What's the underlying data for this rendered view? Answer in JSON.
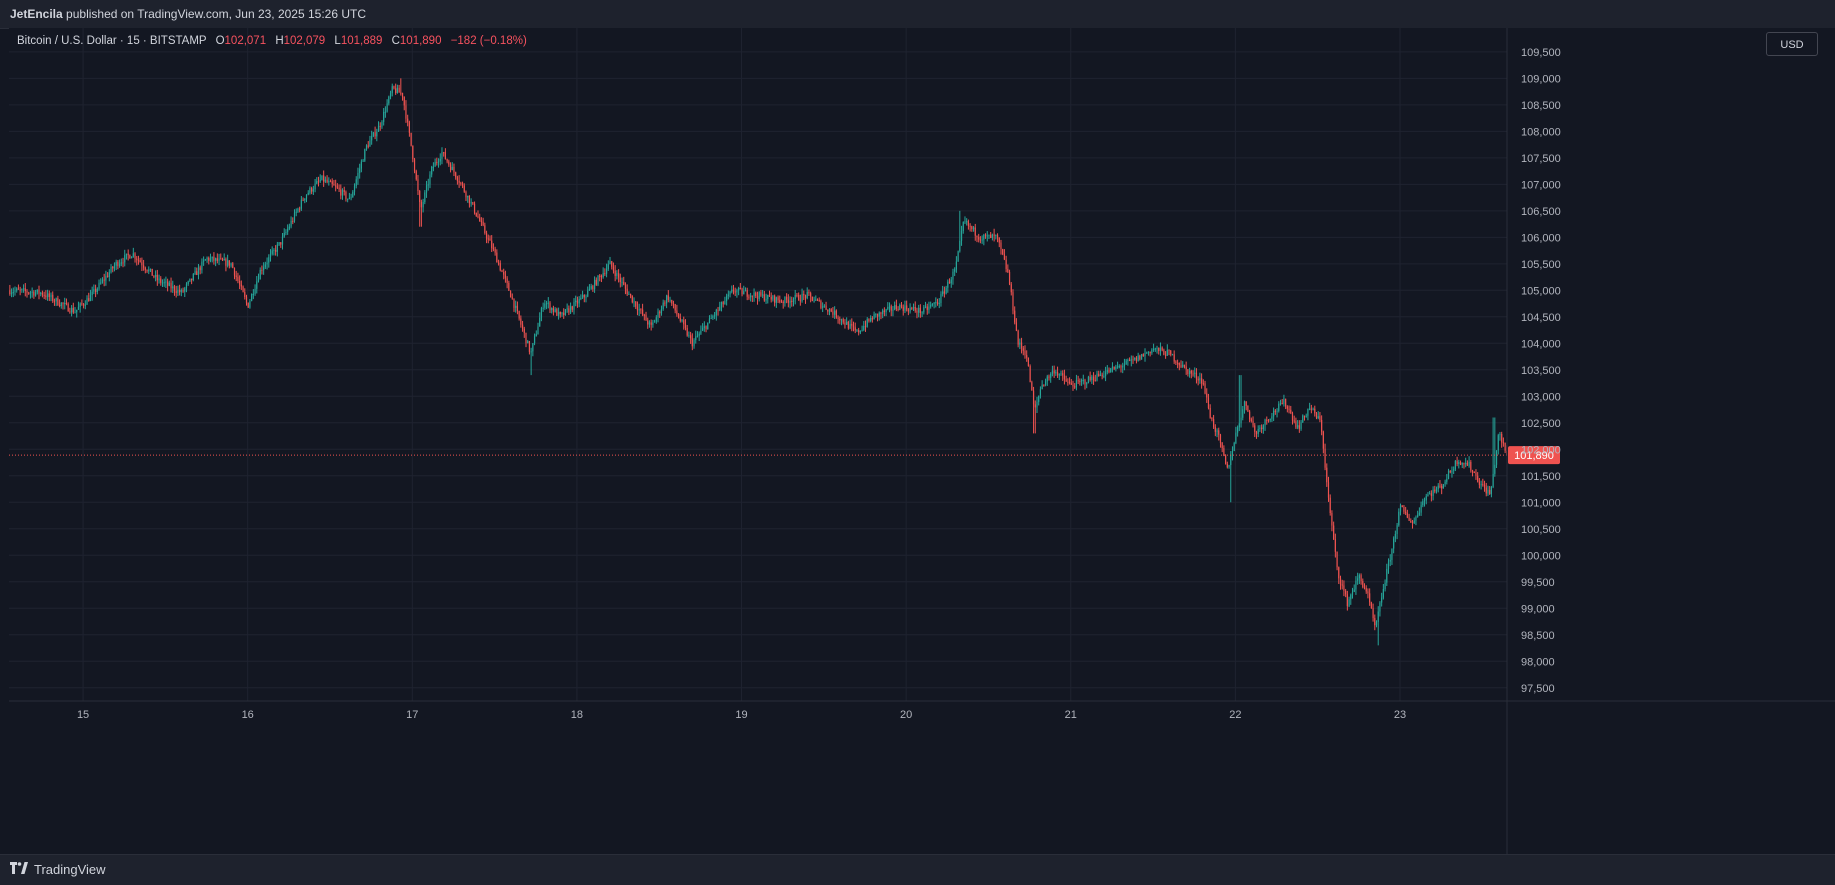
{
  "header": {
    "author": "JetEncila",
    "published_text": "published on TradingView.com, Jun 23, 2025 15:26 UTC"
  },
  "legend": {
    "symbol": "Bitcoin / U.S. Dollar · 15 · BITSTAMP",
    "o_label": "O",
    "o_value": "102,071",
    "h_label": "H",
    "h_value": "102,079",
    "l_label": "L",
    "l_value": "101,889",
    "c_label": "C",
    "c_value": "101,890",
    "change": "−182 (−0.18%)"
  },
  "currency_button": "USD",
  "footer": {
    "brand": "TradingView",
    "logo_icon": "tradingview-logo-icon"
  },
  "colors": {
    "up": "#26a69a",
    "down": "#ef5350",
    "price_line": "#ef5350",
    "background": "#131722",
    "grid": "#1f2330"
  },
  "chart_data": {
    "type": "candlestick",
    "title": "Bitcoin / U.S. Dollar · 15 · BITSTAMP",
    "x_ticks": [
      "15",
      "16",
      "17",
      "18",
      "19",
      "20",
      "21",
      "22",
      "23"
    ],
    "x_tick_day_index": [
      15,
      16,
      17,
      18,
      19,
      20,
      21,
      22,
      23
    ],
    "xlim": [
      14.55,
      23.65
    ],
    "ylim": [
      97250,
      109950
    ],
    "y_ticks": [
      97500,
      98000,
      98500,
      99000,
      99500,
      100000,
      100500,
      101000,
      101500,
      102000,
      102500,
      103000,
      103500,
      104000,
      104500,
      105000,
      105500,
      106000,
      106500,
      107000,
      107500,
      108000,
      108500,
      109000,
      109500
    ],
    "y_tick_labels": [
      "97,500",
      "98,000",
      "98,500",
      "99,000",
      "99,500",
      "100,000",
      "100,500",
      "101,000",
      "101,500",
      "102,000",
      "102,500",
      "103,000",
      "103,500",
      "104,000",
      "104,500",
      "105,000",
      "105,500",
      "106,000",
      "106,500",
      "107,000",
      "107,500",
      "108,000",
      "108,500",
      "109,000",
      "109,500"
    ],
    "last_price": 101890,
    "last_price_label": "101,890",
    "price_path": [
      [
        14.55,
        105000
      ],
      [
        14.75,
        104950
      ],
      [
        14.95,
        104600
      ],
      [
        15.05,
        104900
      ],
      [
        15.2,
        105500
      ],
      [
        15.3,
        105700
      ],
      [
        15.45,
        105200
      ],
      [
        15.6,
        104950
      ],
      [
        15.75,
        105600
      ],
      [
        15.9,
        105500
      ],
      [
        16.0,
        104700
      ],
      [
        16.08,
        105400
      ],
      [
        16.2,
        105900
      ],
      [
        16.35,
        106800
      ],
      [
        16.45,
        107100
      ],
      [
        16.55,
        106900
      ],
      [
        16.62,
        106700
      ],
      [
        16.72,
        107700
      ],
      [
        16.8,
        108100
      ],
      [
        16.88,
        108800
      ],
      [
        16.94,
        108700
      ],
      [
        17.0,
        107600
      ],
      [
        17.05,
        106500
      ],
      [
        17.12,
        107300
      ],
      [
        17.18,
        107600
      ],
      [
        17.28,
        107100
      ],
      [
        17.38,
        106500
      ],
      [
        17.5,
        105700
      ],
      [
        17.6,
        104900
      ],
      [
        17.72,
        103800
      ],
      [
        17.8,
        104800
      ],
      [
        17.9,
        104500
      ],
      [
        18.05,
        104900
      ],
      [
        18.2,
        105500
      ],
      [
        18.3,
        105000
      ],
      [
        18.45,
        104300
      ],
      [
        18.55,
        104900
      ],
      [
        18.7,
        104000
      ],
      [
        18.8,
        104400
      ],
      [
        18.95,
        105000
      ],
      [
        19.1,
        104900
      ],
      [
        19.25,
        104800
      ],
      [
        19.4,
        104900
      ],
      [
        19.55,
        104600
      ],
      [
        19.7,
        104200
      ],
      [
        19.8,
        104500
      ],
      [
        19.95,
        104700
      ],
      [
        20.1,
        104600
      ],
      [
        20.2,
        104800
      ],
      [
        20.3,
        105400
      ],
      [
        20.35,
        106300
      ],
      [
        20.45,
        106000
      ],
      [
        20.55,
        106000
      ],
      [
        20.62,
        105300
      ],
      [
        20.68,
        104000
      ],
      [
        20.73,
        103800
      ],
      [
        20.78,
        102700
      ],
      [
        20.82,
        103200
      ],
      [
        20.9,
        103500
      ],
      [
        21.0,
        103200
      ],
      [
        21.1,
        103300
      ],
      [
        21.25,
        103500
      ],
      [
        21.4,
        103700
      ],
      [
        21.5,
        103900
      ],
      [
        21.6,
        103800
      ],
      [
        21.7,
        103500
      ],
      [
        21.8,
        103300
      ],
      [
        21.85,
        102600
      ],
      [
        21.9,
        102200
      ],
      [
        21.95,
        101600
      ],
      [
        22.02,
        102500
      ],
      [
        22.06,
        102900
      ],
      [
        22.12,
        102300
      ],
      [
        22.2,
        102600
      ],
      [
        22.3,
        102900
      ],
      [
        22.38,
        102400
      ],
      [
        22.45,
        102800
      ],
      [
        22.52,
        102500
      ],
      [
        22.56,
        101200
      ],
      [
        22.62,
        99700
      ],
      [
        22.68,
        99100
      ],
      [
        22.75,
        99600
      ],
      [
        22.8,
        99300
      ],
      [
        22.85,
        98600
      ],
      [
        22.9,
        99400
      ],
      [
        22.95,
        100100
      ],
      [
        23.0,
        100900
      ],
      [
        23.08,
        100600
      ],
      [
        23.15,
        101100
      ],
      [
        23.25,
        101300
      ],
      [
        23.35,
        101800
      ],
      [
        23.42,
        101700
      ],
      [
        23.5,
        101300
      ],
      [
        23.55,
        101150
      ],
      [
        23.6,
        102300
      ],
      [
        23.65,
        101890
      ]
    ],
    "notable_extremes": [
      {
        "x": 16.93,
        "high": 109000
      },
      {
        "x": 17.05,
        "low": 106200
      },
      {
        "x": 17.72,
        "low": 103400
      },
      {
        "x": 20.33,
        "high": 106500
      },
      {
        "x": 20.78,
        "low": 102300
      },
      {
        "x": 21.97,
        "low": 101000
      },
      {
        "x": 22.03,
        "high": 103400
      },
      {
        "x": 22.87,
        "low": 98300
      },
      {
        "x": 23.57,
        "high": 102600
      }
    ]
  }
}
